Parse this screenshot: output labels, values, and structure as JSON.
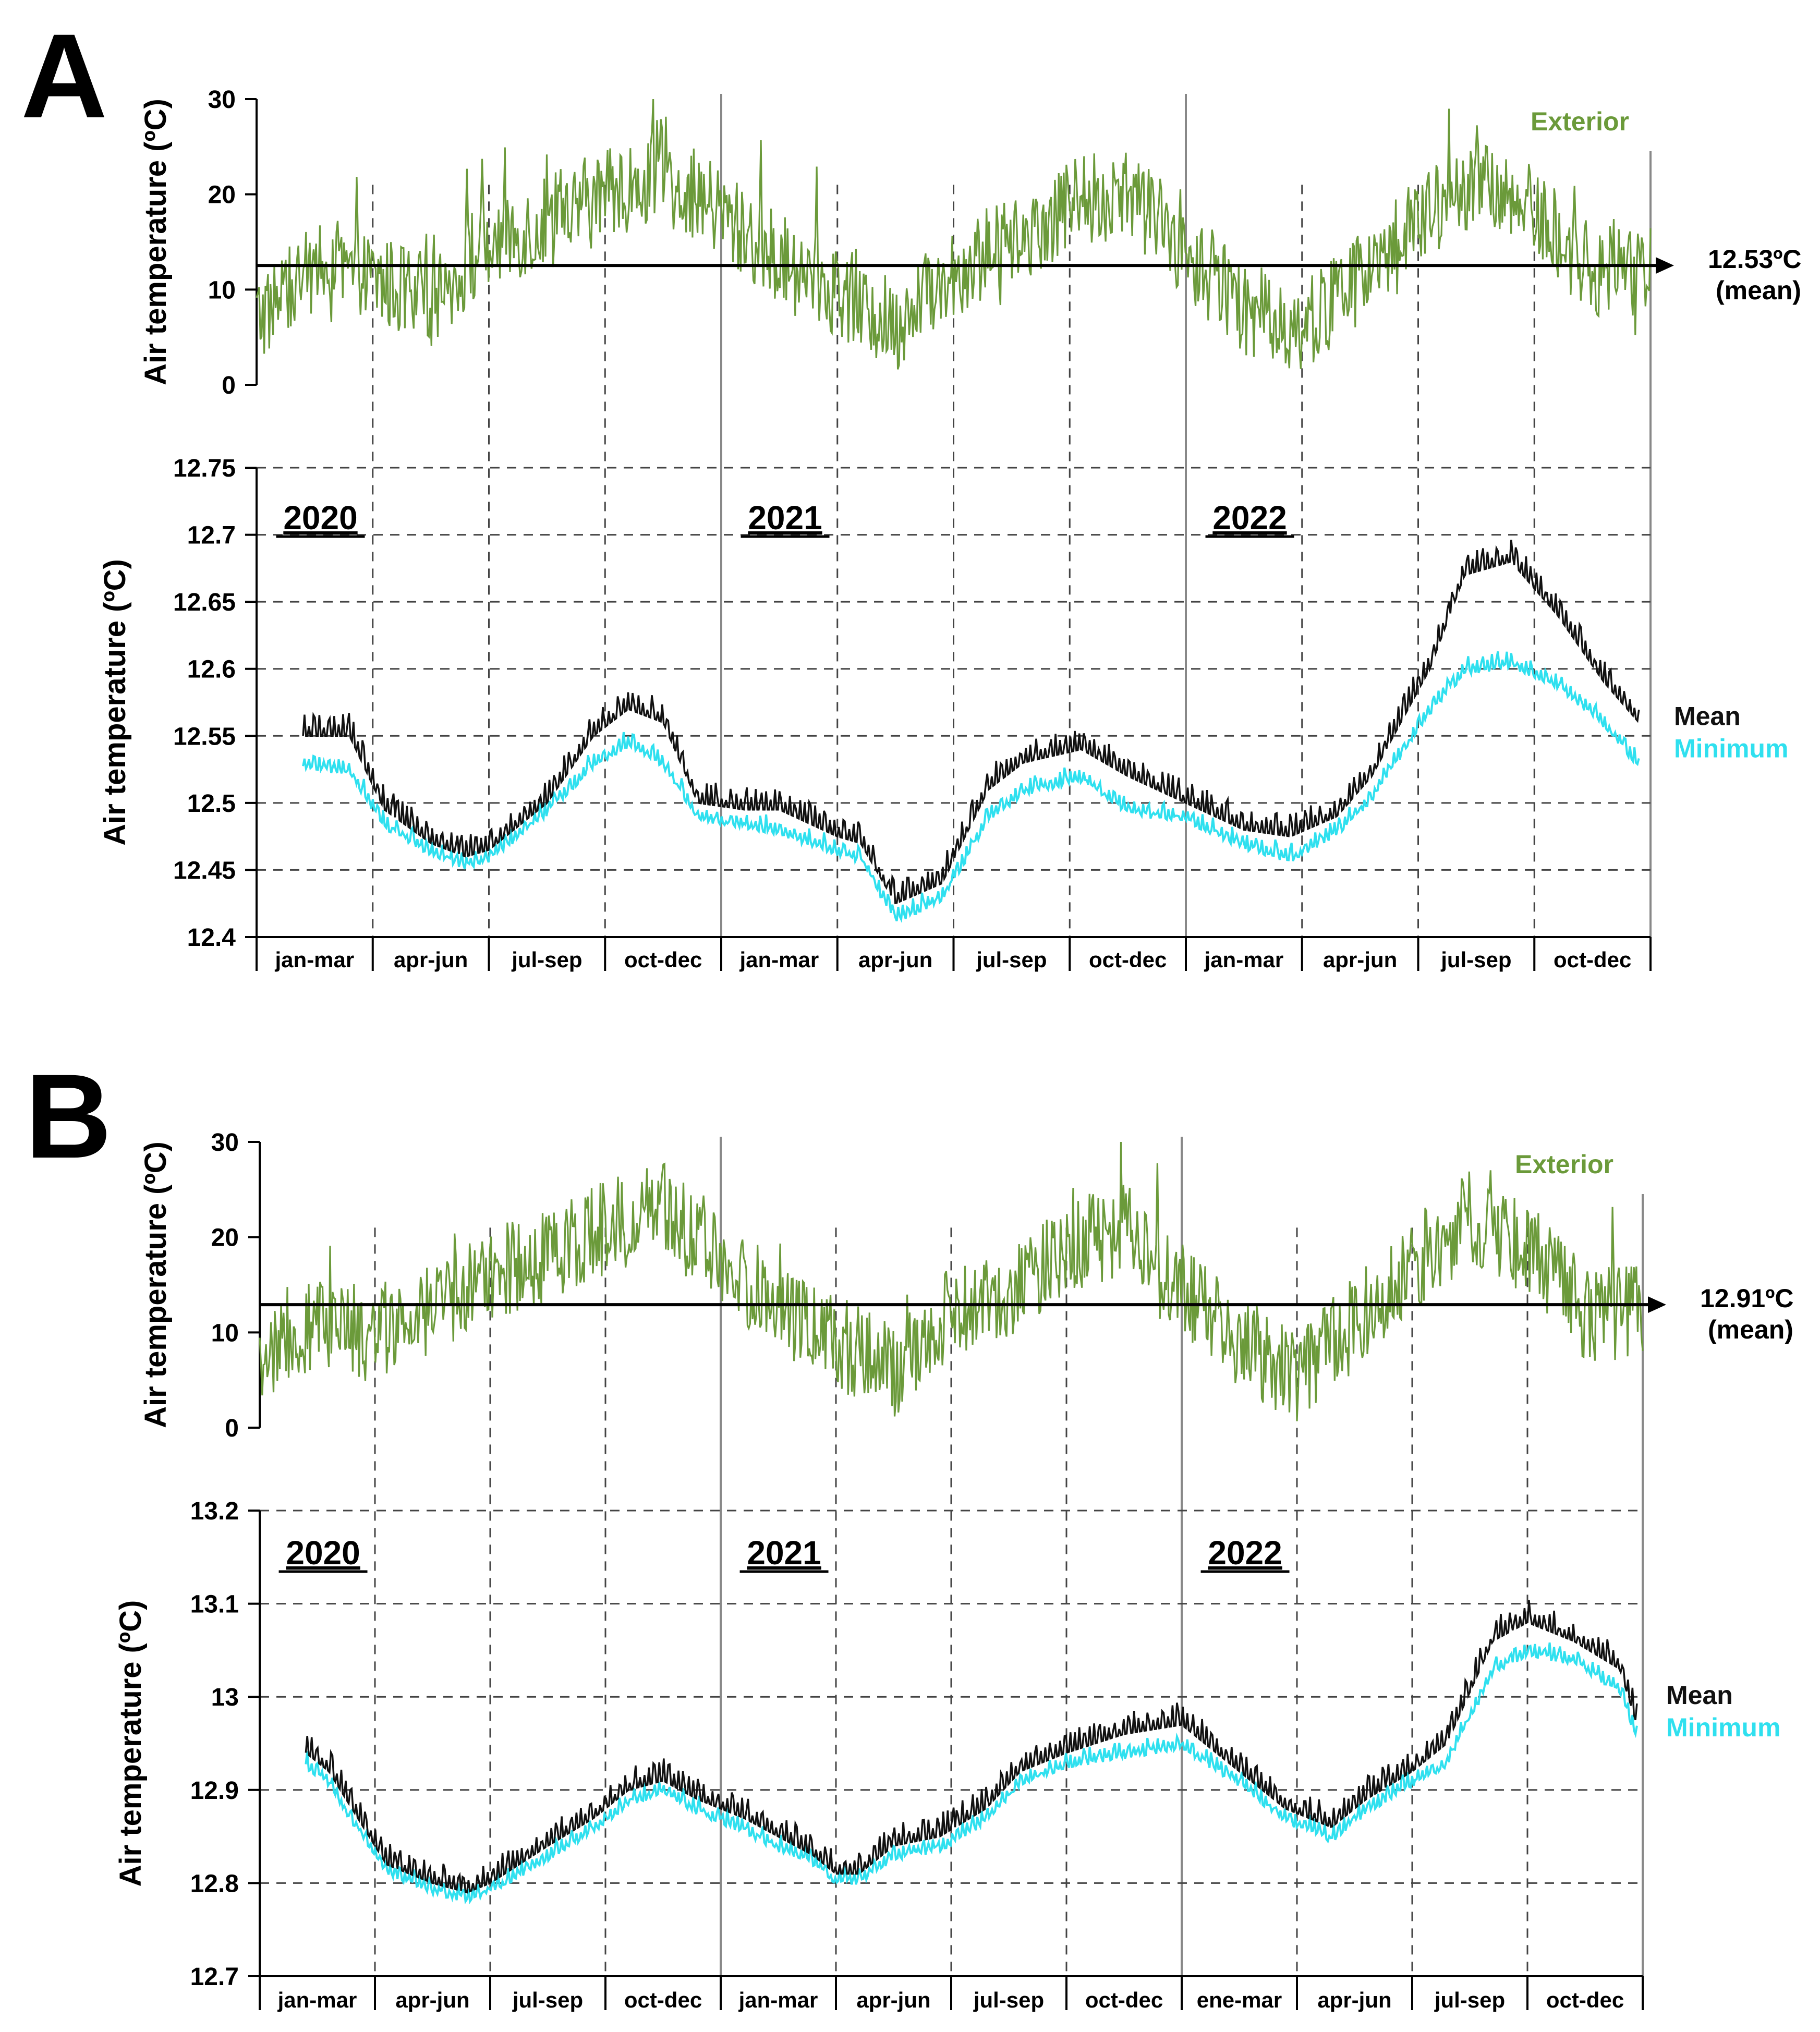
{
  "figure": {
    "colors": {
      "exterior": "#6b9a3a",
      "mean": "#111111",
      "minimum": "#2fe0ef",
      "axis": "#000000"
    }
  },
  "chart_data": [
    {
      "panel": "A",
      "type": "line",
      "title": "A",
      "x_categories": [
        "jan-mar",
        "apr-jun",
        "jul-sep",
        "oct-dec",
        "jan-mar",
        "apr-jun",
        "jul-sep",
        "oct-dec",
        "jan-mar",
        "apr-jun",
        "jul-sep",
        "oct-dec"
      ],
      "years": [
        "2020",
        "2021",
        "2022"
      ],
      "upper": {
        "ylabel": "Air temperature (ºC)",
        "ylim": [
          0,
          30
        ],
        "yticks": [
          0,
          10,
          20,
          30
        ],
        "legend": "Exterior",
        "mean_value": 12.53,
        "mean_label": "12.53ºC",
        "mean_sublabel": "(mean)",
        "series": [
          {
            "name": "Exterior",
            "x": [
              0,
              0.5,
              1,
              1.5,
              2,
              2.5,
              3,
              3.5,
              4,
              4.5,
              5,
              5.5,
              6,
              6.5,
              7,
              7.5,
              8,
              8.5,
              9,
              9.5,
              10,
              10.5,
              11,
              11.5,
              12
            ],
            "values": [
              7,
              12,
              11,
              9,
              15,
              17,
              20,
              22,
              18,
              13,
              10,
              6,
              12,
              15,
              19,
              20,
              14,
              8,
              6,
              11,
              17,
              21,
              18,
              12,
              12
            ]
          }
        ]
      },
      "lower": {
        "ylabel": "Air temperature (ºC)",
        "ylim": [
          12.4,
          12.75
        ],
        "yticks": [
          12.4,
          12.45,
          12.5,
          12.55,
          12.6,
          12.65,
          12.7,
          12.75
        ],
        "ytick_labels": [
          "12.4",
          "12.45",
          "12.5",
          "12.55",
          "12.6",
          "12.65",
          "12.7",
          "12.75"
        ],
        "legend": [
          "Mean",
          "Minimum"
        ],
        "series": [
          {
            "name": "Mean",
            "x": [
              0.4,
              0.8,
              1.1,
              1.5,
              1.8,
              2,
              2.5,
              2.9,
              3.2,
              3.5,
              3.8,
              4.2,
              4.5,
              5,
              5.2,
              5.5,
              5.9,
              6.3,
              6.6,
              7.1,
              7.5,
              8,
              8.5,
              8.9,
              9.3,
              9.6,
              10.1,
              10.4,
              10.8,
              11.2,
              11.6,
              11.9
            ],
            "values": [
              12.55,
              12.55,
              12.495,
              12.47,
              12.46,
              12.465,
              12.5,
              12.55,
              12.57,
              12.56,
              12.5,
              12.495,
              12.495,
              12.475,
              12.47,
              12.425,
              12.44,
              12.51,
              12.53,
              12.54,
              12.52,
              12.5,
              12.48,
              12.475,
              12.49,
              12.52,
              12.6,
              12.67,
              12.68,
              12.64,
              12.59,
              12.56
            ]
          },
          {
            "name": "Minimum",
            "x": [
              0.4,
              0.8,
              1.1,
              1.5,
              1.8,
              2,
              2.5,
              2.9,
              3.2,
              3.5,
              3.8,
              4.2,
              4.5,
              5,
              5.2,
              5.5,
              5.9,
              6.3,
              6.6,
              7.1,
              7.5,
              8,
              8.5,
              8.9,
              9.3,
              9.6,
              10.1,
              10.4,
              10.8,
              11.2,
              11.6,
              11.9
            ],
            "values": [
              12.53,
              12.525,
              12.485,
              12.465,
              12.455,
              12.46,
              12.495,
              12.53,
              12.545,
              12.53,
              12.49,
              12.485,
              12.48,
              12.465,
              12.46,
              12.415,
              12.43,
              12.49,
              12.51,
              12.52,
              12.495,
              12.49,
              12.47,
              12.46,
              12.48,
              12.505,
              12.57,
              12.6,
              12.605,
              12.59,
              12.56,
              12.53
            ]
          }
        ]
      }
    },
    {
      "panel": "B",
      "type": "line",
      "title": "B",
      "x_categories": [
        "jan-mar",
        "apr-jun",
        "jul-sep",
        "oct-dec",
        "jan-mar",
        "apr-jun",
        "jul-sep",
        "oct-dec",
        "ene-mar",
        "apr-jun",
        "jul-sep",
        "oct-dec"
      ],
      "years": [
        "2020",
        "2021",
        "2022"
      ],
      "upper": {
        "ylabel": "Air temperature (ºC)",
        "ylim": [
          0,
          30
        ],
        "yticks": [
          0,
          10,
          20,
          30
        ],
        "legend": "Exterior",
        "mean_value": 12.91,
        "mean_label": "12.91ºC",
        "mean_sublabel": "(mean)",
        "series": [
          {
            "name": "Exterior",
            "x": [
              0,
              0.5,
              1,
              1.5,
              2,
              2.5,
              3,
              3.5,
              4,
              4.5,
              5,
              5.5,
              6,
              6.5,
              7,
              7.5,
              8,
              8.5,
              9,
              9.5,
              10,
              10.5,
              11,
              11.5,
              12
            ],
            "values": [
              7,
              11,
              10,
              12,
              16,
              18,
              21,
              23,
              17,
              13,
              9,
              6,
              12,
              14,
              19,
              21,
              15,
              9,
              5,
              11,
              17,
              22,
              19,
              12,
              12
            ]
          }
        ]
      },
      "lower": {
        "ylabel": "Air temperature (ºC)",
        "ylim": [
          12.7,
          13.2
        ],
        "yticks": [
          12.7,
          12.8,
          12.9,
          13.0,
          13.1,
          13.2
        ],
        "ytick_labels": [
          "12.7",
          "12.8",
          "12.9",
          "13",
          "13.1",
          "13.2"
        ],
        "legend": [
          "Mean",
          "Minimum"
        ],
        "series": [
          {
            "name": "Mean",
            "x": [
              0.4,
              0.6,
              0.8,
              1.1,
              1.5,
              1.8,
              2,
              2.5,
              2.9,
              3.2,
              3.5,
              3.8,
              4.2,
              4.5,
              4.8,
              5,
              5.2,
              5.5,
              5.9,
              6.3,
              6.6,
              7,
              7.5,
              8,
              8.5,
              8.9,
              9.3,
              9.6,
              10,
              10.3,
              10.7,
              11,
              11.4,
              11.8,
              11.95
            ],
            "values": [
              12.94,
              12.92,
              12.88,
              12.82,
              12.8,
              12.79,
              12.8,
              12.84,
              12.87,
              12.9,
              12.91,
              12.89,
              12.87,
              12.85,
              12.83,
              12.81,
              12.81,
              12.84,
              12.85,
              12.88,
              12.92,
              12.94,
              12.96,
              12.97,
              12.92,
              12.88,
              12.86,
              12.89,
              12.92,
              12.95,
              13.06,
              13.08,
              13.06,
              13.03,
              12.97
            ]
          },
          {
            "name": "Minimum",
            "x": [
              0.4,
              0.6,
              0.8,
              1.1,
              1.5,
              1.8,
              2,
              2.5,
              2.9,
              3.2,
              3.5,
              3.8,
              4.2,
              4.5,
              4.8,
              5,
              5.2,
              5.5,
              5.9,
              6.3,
              6.6,
              7,
              7.5,
              8,
              8.5,
              8.9,
              9.3,
              9.6,
              10,
              10.3,
              10.7,
              11,
              11.4,
              11.8,
              11.95
            ],
            "values": [
              12.93,
              12.91,
              12.87,
              12.815,
              12.795,
              12.785,
              12.795,
              12.83,
              12.86,
              12.89,
              12.9,
              12.88,
              12.86,
              12.84,
              12.825,
              12.805,
              12.805,
              12.83,
              12.84,
              12.87,
              12.91,
              12.93,
              12.94,
              12.95,
              12.91,
              12.87,
              12.85,
              12.88,
              12.91,
              12.93,
              13.03,
              13.05,
              13.04,
              13.01,
              12.96
            ]
          }
        ]
      }
    }
  ]
}
